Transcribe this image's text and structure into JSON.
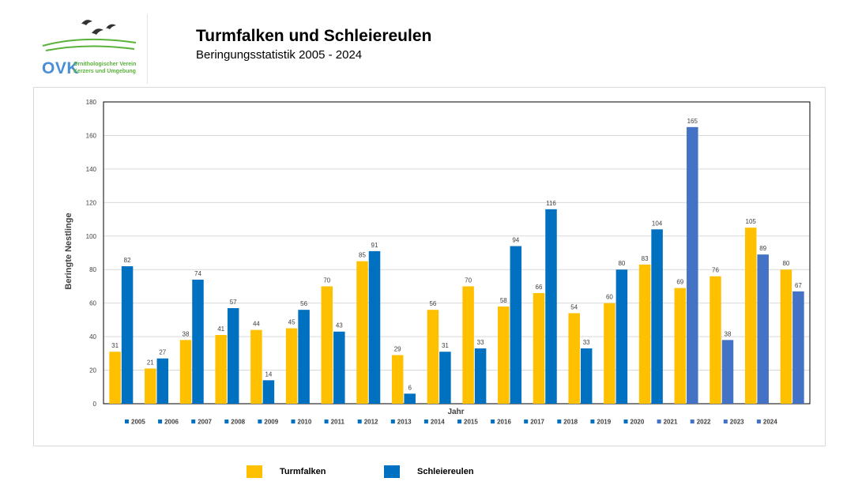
{
  "header": {
    "title": "Turmfalken und Schleiereulen",
    "subtitle": "Beringungsstatistik 2005 - 2024"
  },
  "logo": {
    "abbr": "OVK",
    "org_line1": "Ornithologischer Verein",
    "org_line2": "Kerzers und Umgebung"
  },
  "colors": {
    "turmfalken": "#ffc000",
    "schleiereulen": "#0070c0",
    "schleiereulen_alt": "#4472c4",
    "grid": "#d9d9d9"
  },
  "legend": {
    "turmfalken": "Turmfalken",
    "schleiereulen": "Schleiereulen"
  },
  "chart_data": {
    "type": "bar",
    "title": "",
    "xlabel": "Jahr",
    "ylabel": "Beringte Nestlinge",
    "ylim": [
      0,
      180
    ],
    "yticks": [
      0,
      20,
      40,
      60,
      80,
      100,
      120,
      140,
      160,
      180
    ],
    "grid": true,
    "categories": [
      "2005",
      "2006",
      "2007",
      "2008",
      "2009",
      "2010",
      "2011",
      "2012",
      "2013",
      "2014",
      "2015",
      "2016",
      "2017",
      "2018",
      "2019",
      "2020",
      "2021",
      "2022",
      "2023",
      "2024"
    ],
    "series": [
      {
        "name": "Turmfalken",
        "values": [
          31,
          21,
          38,
          41,
          44,
          45,
          70,
          85,
          29,
          56,
          70,
          58,
          66,
          54,
          60,
          83,
          69,
          76,
          105,
          80
        ]
      },
      {
        "name": "Schleiereulen",
        "values": [
          82,
          27,
          74,
          57,
          14,
          56,
          43,
          91,
          6,
          31,
          33,
          94,
          116,
          33,
          80,
          104,
          165,
          38,
          89,
          67
        ]
      }
    ],
    "year_key": [
      "2005",
      "2006",
      "2007",
      "2008",
      "2009",
      "2010",
      "2011",
      "2012",
      "2013",
      "2014",
      "2015",
      "2016",
      "2017",
      "2018",
      "2019",
      "2020",
      "2021",
      "2022",
      "2023",
      "2024"
    ]
  }
}
